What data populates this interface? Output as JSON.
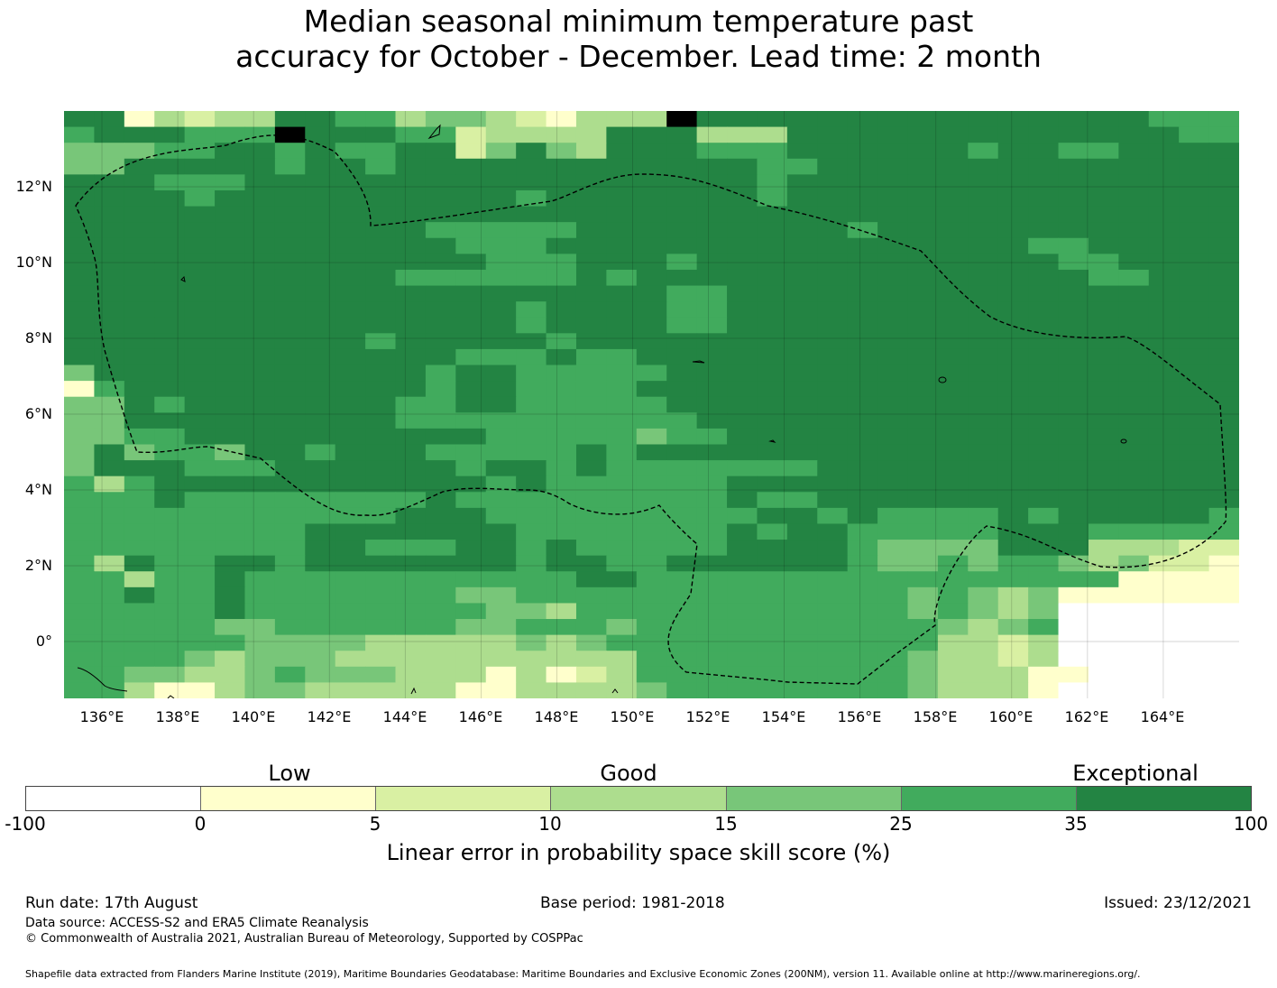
{
  "title_line1": "Median seasonal minimum temperature past",
  "title_line2": "accuracy for October - December. Lead time: 2 month",
  "map": {
    "lat_labels": [
      "12°N",
      "10°N",
      "8°N",
      "6°N",
      "4°N",
      "2°N",
      "0°"
    ],
    "lat_values": [
      12,
      10,
      8,
      6,
      4,
      2,
      0
    ],
    "lon_labels": [
      "136°E",
      "138°E",
      "140°E",
      "142°E",
      "144°E",
      "146°E",
      "148°E",
      "150°E",
      "152°E",
      "154°E",
      "156°E",
      "158°E",
      "160°E",
      "162°E",
      "164°E"
    ],
    "lon_values": [
      136,
      138,
      140,
      142,
      144,
      146,
      148,
      150,
      152,
      154,
      156,
      158,
      160,
      162,
      164
    ],
    "lon_range": [
      135,
      166
    ],
    "lat_range": [
      -1.5,
      14
    ],
    "grid_cell_deg": 0.833,
    "boundary": "dashed",
    "palette": [
      "#ffffff",
      "#ffffcc",
      "#d9f0a3",
      "#addd8e",
      "#78c679",
      "#41ab5d",
      "#238443"
    ],
    "skill_grid_codes": [
      "661323366553443213337666666666666666555",
      "566655576665523333666333666666666666655",
      "444556656556624643666555666666566556666",
      "446666656656666666666665566666666666666",
      "666555666666666666666665666666666666666",
      "666656666666666566666665666666666666666",
      "666666666666666666666666666666666666666",
      "666666666666555556666666665666666666666",
      "666666666666655566666666666666665566666",
      "666666666666665556665666666666666556666",
      "666666666665555556566666666666666655666",
      "666666666666666666665566666666666666666",
      "666666666666666566665566666666666666666",
      "666666666666666566665566666666666666666",
      "666666666656666656666666666666666666666",
      "666666666666655565566666666666666666666",
      "466666666666566555556666666666666666666",
      "156666666666566555566666666666666666666",
      "446566666665566555556666666666666666666",
      "446666666665555555555666666666666666666",
      "445566666666665555545566666666666666666",
      "464554665666555556566666666666666666666",
      "466655566666656656555555566666666666666",
      "535666666666665655555566666666666666666",
      "555655555555655555555565566666666666666",
      "555555555556665555555556656555565666665",
      "555555556666666555555565665555566655555",
      "555555556655566565555566665444466633322",
      "536556656666666566556666665445455434221",
      "553556555555555556655555555555555551111",
      "556556555555544555555555555545434111111",
      "555556555555554435555555555545434000000",
      "555554455555544555455555555554345000000",
      "555555444433333434555555555553323000000",
      "555543444333333333355555555543323000000",
      "554433454443331312355555555543331100000",
      "553113443333311333345555555543331000000"
    ]
  },
  "colorbar": {
    "categories": [
      "Low",
      "Good",
      "Exceptional"
    ],
    "ticks": [
      "-100",
      "0",
      "5",
      "10",
      "15",
      "25",
      "35",
      "100"
    ],
    "colors": [
      "#ffffff",
      "#ffffcc",
      "#d9f0a3",
      "#addd8e",
      "#78c679",
      "#41ab5d",
      "#238443"
    ],
    "label": "Linear error in probability space skill score (%)"
  },
  "footer": {
    "run_date": "Run date: 17th August",
    "base_period": "Base period: 1981-2018",
    "issued": "Issued: 23/12/2021",
    "data_source": "Data source: ACCESS-S2 and ERA5 Climate Reanalysis",
    "copyright": "© Commonwealth of Australia 2021, Australian Bureau of Meteorology, Supported by COSPPac",
    "shapefile": "Shapefile data extracted from Flanders Marine Institute (2019), Maritime Boundaries Geodatabase: Maritime Boundaries and Exclusive Economic Zones (200NM), version 11. Available online at http://www.marineregions.org/."
  }
}
